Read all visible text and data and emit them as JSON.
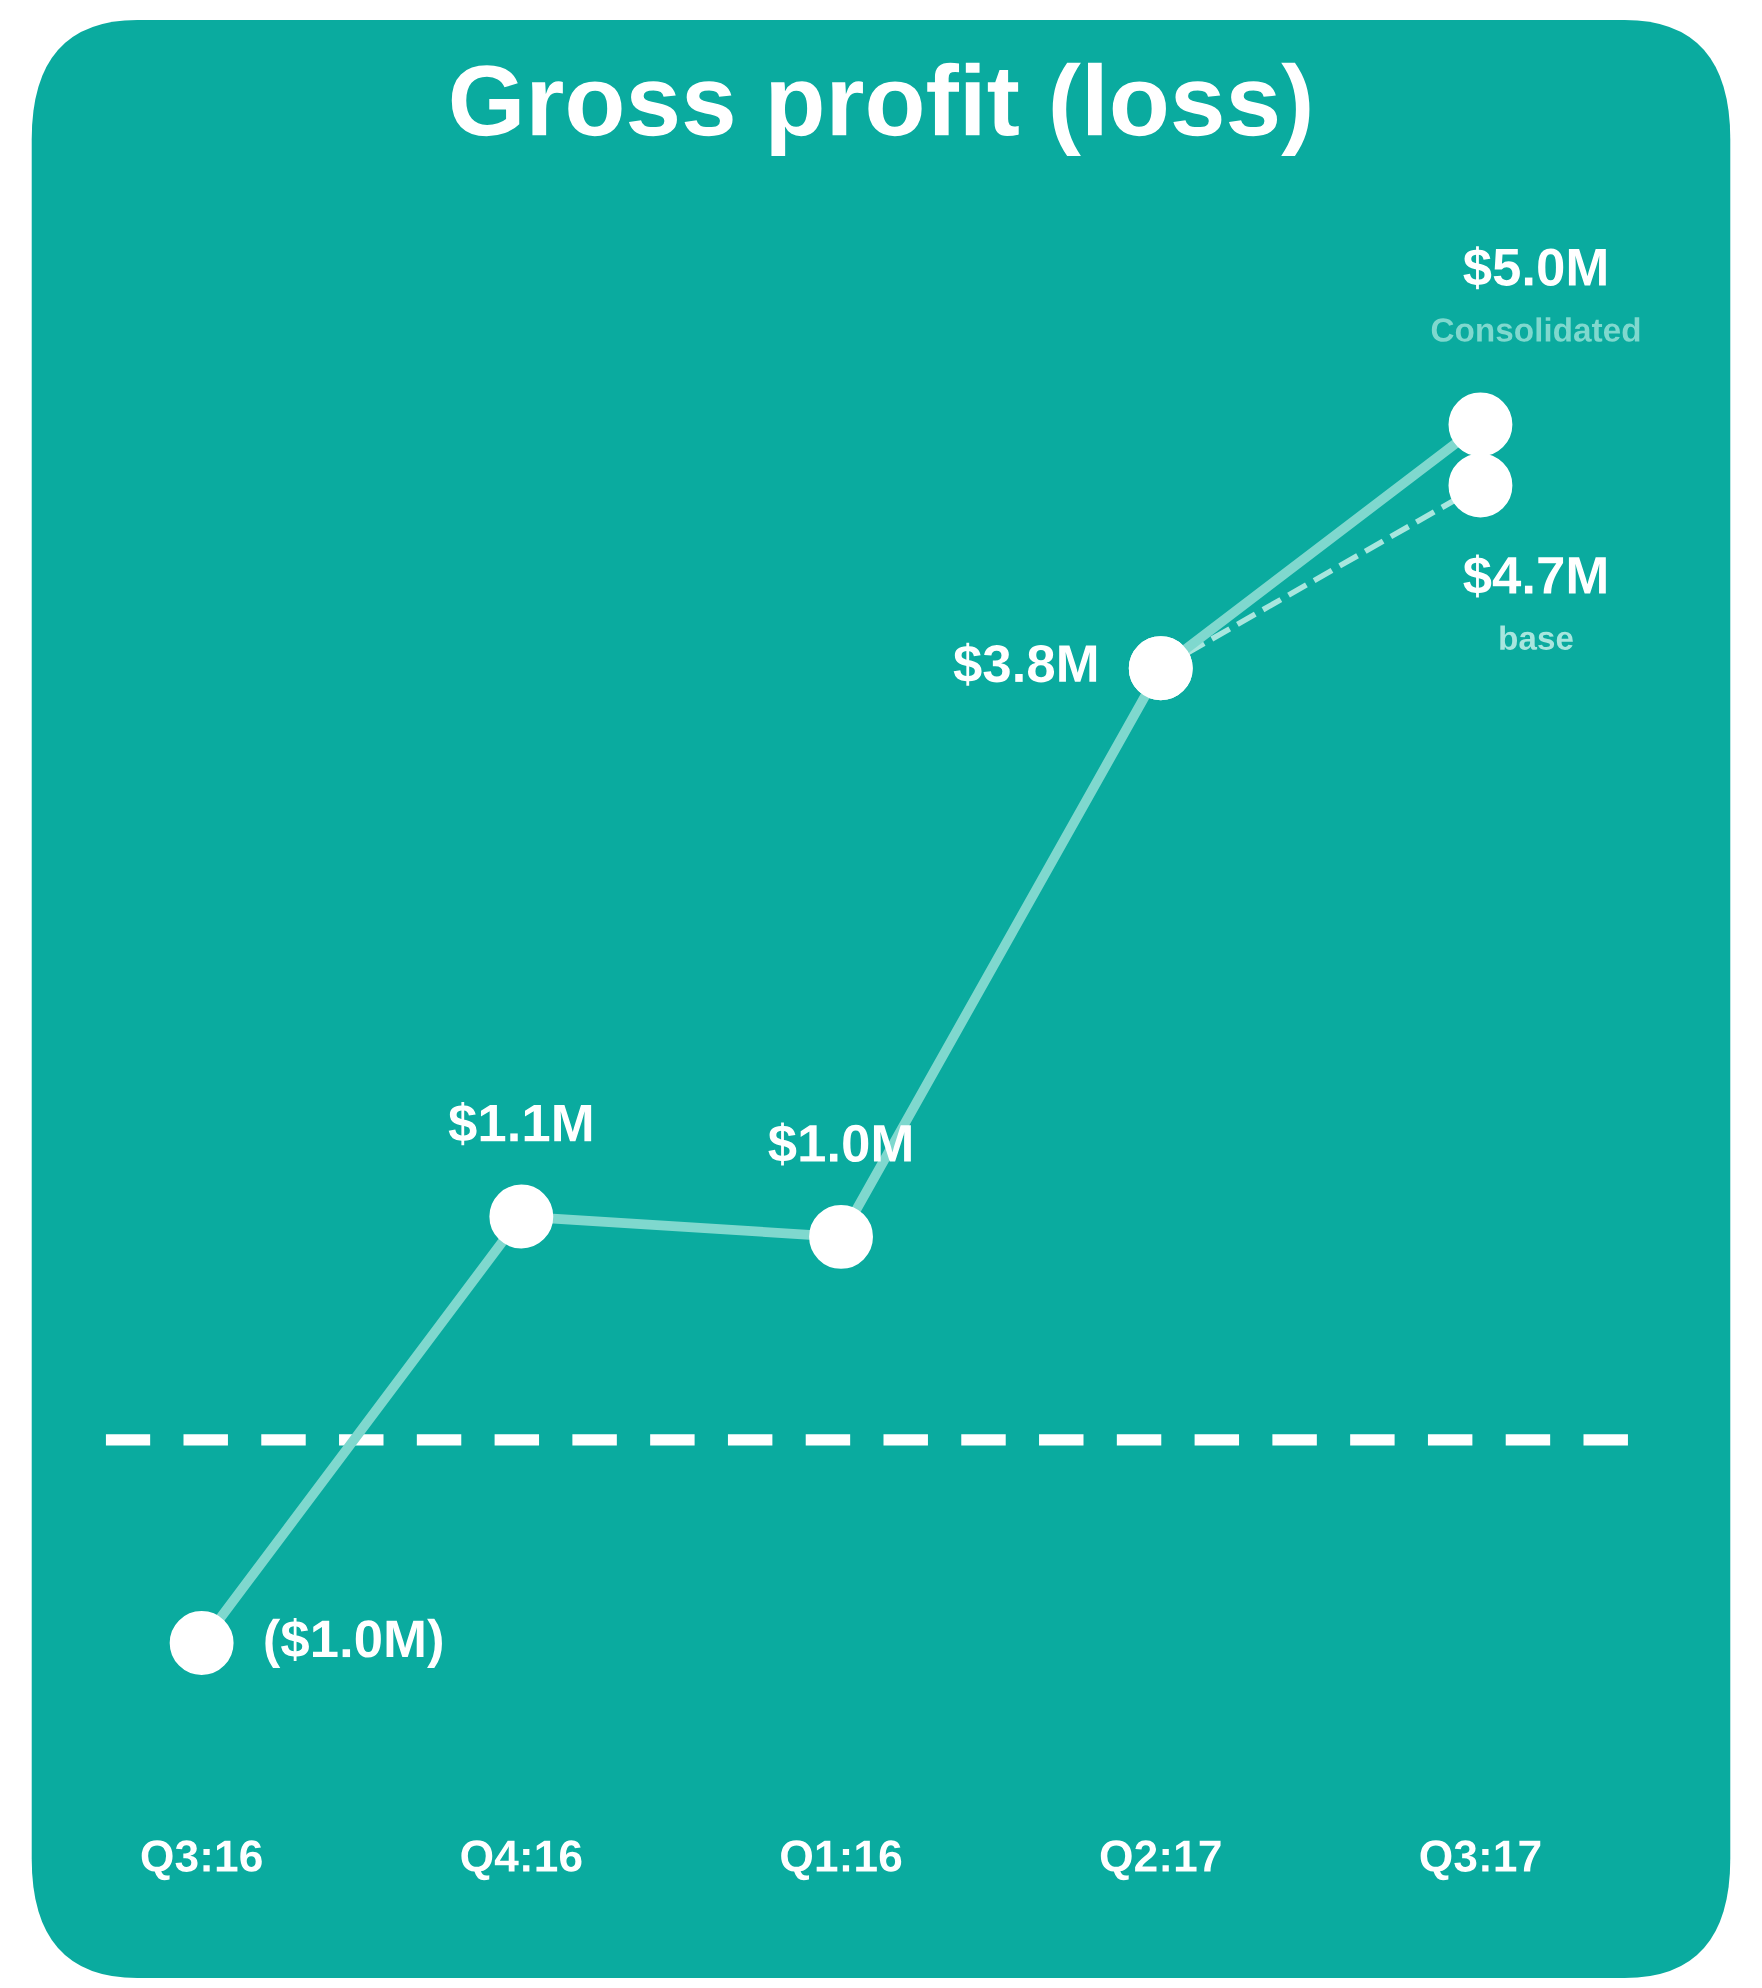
{
  "chart_data": {
    "type": "line",
    "title": "Gross profit (loss)",
    "categories": [
      "Q3:16",
      "Q4:16",
      "Q1:16",
      "Q2:17",
      "Q3:17"
    ],
    "series": [
      {
        "name": "Consolidated",
        "color": "#7fd8ce",
        "line_style": "solid",
        "values": [
          -1.0,
          1.1,
          1.0,
          3.8,
          5.0
        ],
        "value_labels": [
          "($1.0M)",
          "$1.1M",
          "$1.0M",
          "$3.8M",
          "$5.0M"
        ]
      },
      {
        "name": "base",
        "color": "#a8e6de",
        "line_style": "dashed",
        "values": [
          null,
          null,
          null,
          3.8,
          4.7
        ],
        "value_labels": [
          null,
          null,
          null,
          null,
          "$4.7M"
        ]
      }
    ],
    "ref_lines": [
      {
        "axis": "y",
        "value": 0,
        "color": "#ffffff",
        "line_style": "dashed"
      }
    ],
    "marker": "circle",
    "grid": false,
    "legend": false,
    "tick_labels": "x"
  }
}
